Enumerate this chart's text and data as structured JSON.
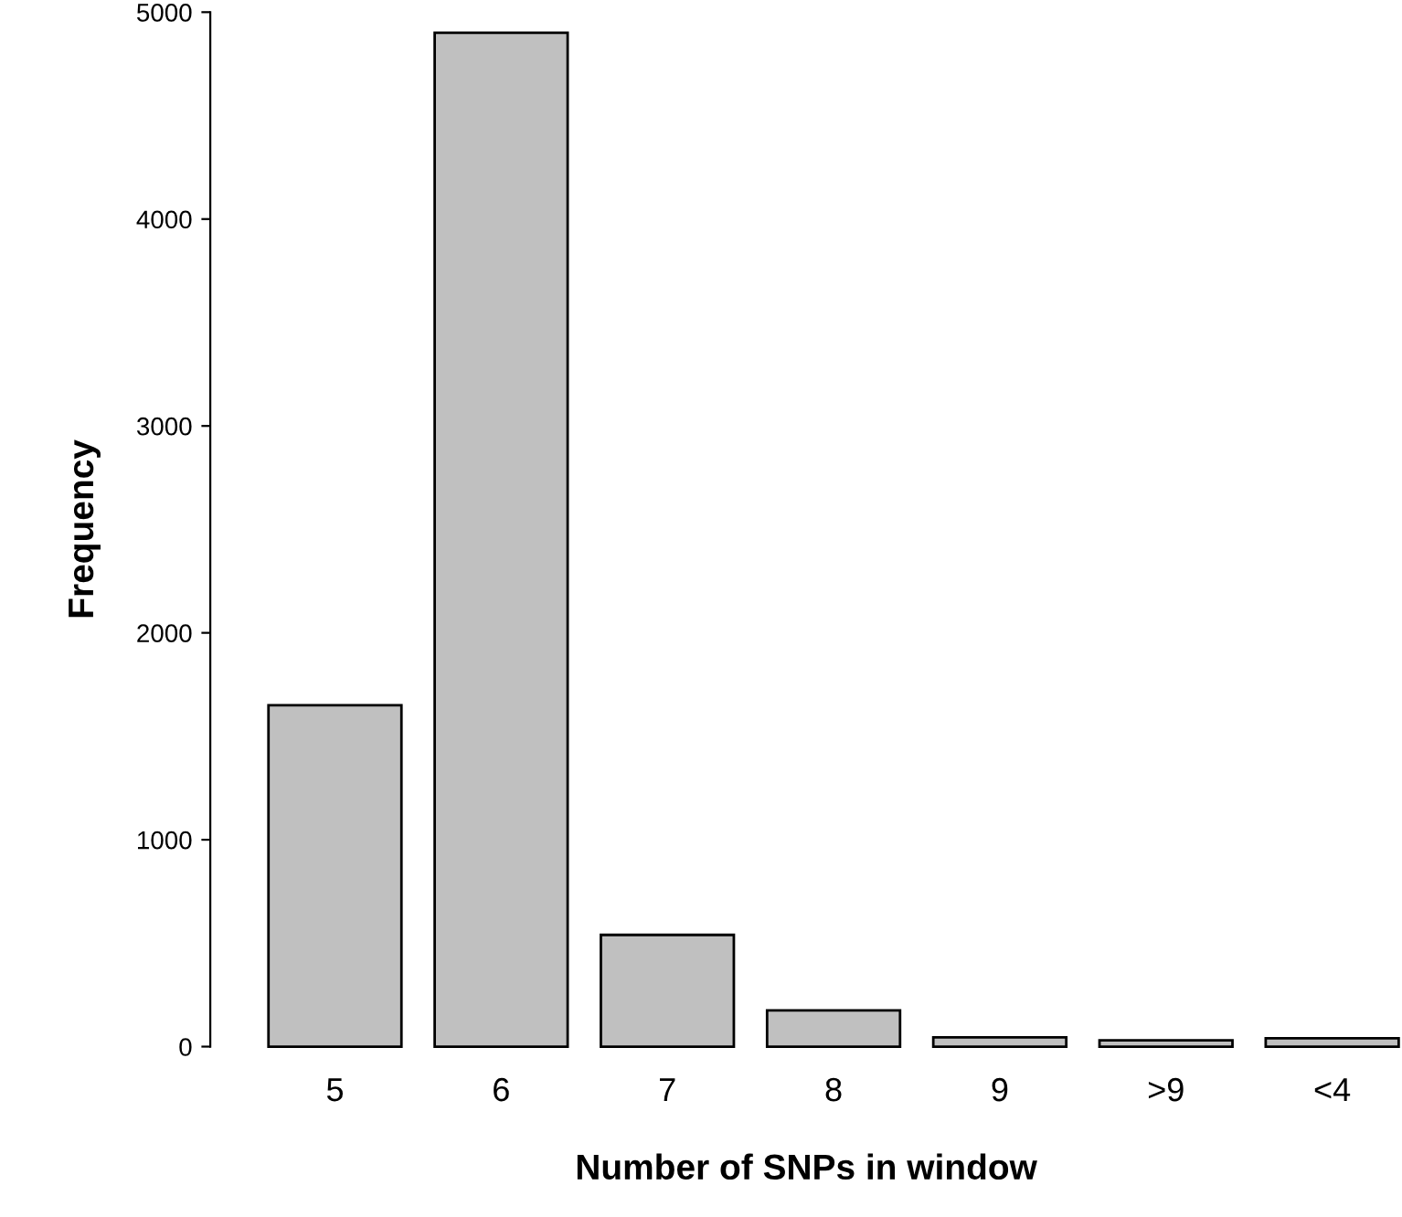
{
  "chart_data": {
    "type": "bar",
    "xlabel": "Number of SNPs in window",
    "ylabel": "Frequency",
    "categories": [
      "5",
      "6",
      "7",
      "8",
      "9",
      ">9",
      "<4"
    ],
    "values": [
      1650,
      4900,
      540,
      175,
      45,
      30,
      40
    ],
    "color": "#c0c0c0",
    "ylim": [
      0,
      5000
    ],
    "yticks": [
      0,
      1000,
      2000,
      3000,
      4000,
      5000
    ],
    "grid": false,
    "legend": false
  }
}
